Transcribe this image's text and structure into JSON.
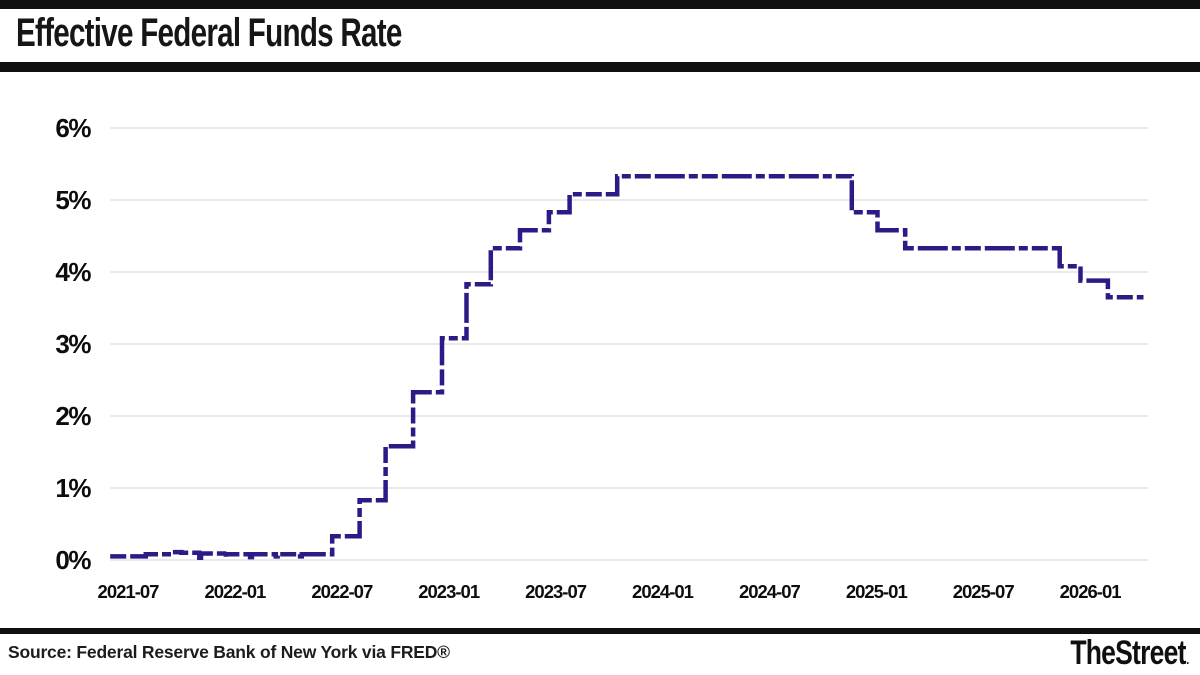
{
  "header": {
    "title": "Effective Federal Funds Rate"
  },
  "footer": {
    "source": "Source: Federal Reserve Bank of New York via FRED®",
    "brand": "TheStreet",
    "brand_dot": "."
  },
  "colors": {
    "line": "#2a1b87",
    "accent_bar": "#101010",
    "grid": "#e4e4e4",
    "tick_label": "#0d0d0d",
    "background": "#ffffff"
  },
  "chart_data": {
    "type": "line",
    "line_style": "stepped, dashed",
    "title": "Effective Federal Funds Rate",
    "xlabel": "",
    "ylabel": "",
    "grid": true,
    "legend": false,
    "ylim": [
      0,
      6
    ],
    "y_tick_labels": [
      "0%",
      "1%",
      "2%",
      "3%",
      "4%",
      "5%",
      "6%"
    ],
    "x_tick_labels": [
      "2021-07",
      "2022-01",
      "2022-07",
      "2023-01",
      "2023-07",
      "2024-01",
      "2024-07",
      "2025-01",
      "2025-07",
      "2026-01"
    ],
    "series": [
      {
        "name": "Effective Federal Funds Rate (%)",
        "points": [
          [
            "2021-06-01",
            0.05
          ],
          [
            "2021-08-01",
            0.08
          ],
          [
            "2021-09-15",
            0.11
          ],
          [
            "2021-10-01",
            0.1
          ],
          [
            "2021-11-01",
            0.03
          ],
          [
            "2021-11-04",
            0.09
          ],
          [
            "2021-12-13",
            0.04
          ],
          [
            "2021-12-16",
            0.08
          ],
          [
            "2022-01-27",
            0.04
          ],
          [
            "2022-01-30",
            0.08
          ],
          [
            "2022-03-10",
            0.05
          ],
          [
            "2022-03-13",
            0.08
          ],
          [
            "2022-04-21",
            0.05
          ],
          [
            "2022-04-24",
            0.08
          ],
          [
            "2022-06-15",
            0.33
          ],
          [
            "2022-08-01",
            0.83
          ],
          [
            "2022-09-15",
            1.58
          ],
          [
            "2022-11-01",
            2.33
          ],
          [
            "2022-12-20",
            3.08
          ],
          [
            "2023-02-01",
            3.83
          ],
          [
            "2023-03-12",
            4.33
          ],
          [
            "2023-05-01",
            4.58
          ],
          [
            "2023-06-20",
            4.83
          ],
          [
            "2023-07-25",
            5.08
          ],
          [
            "2023-10-15",
            5.33
          ],
          [
            "2024-11-20",
            4.83
          ],
          [
            "2025-01-03",
            4.58
          ],
          [
            "2025-02-20",
            4.33
          ],
          [
            "2025-11-10",
            4.08
          ],
          [
            "2025-12-15",
            3.88
          ],
          [
            "2026-02-01",
            3.65
          ],
          [
            "2026-04-01",
            3.65
          ]
        ]
      }
    ]
  }
}
